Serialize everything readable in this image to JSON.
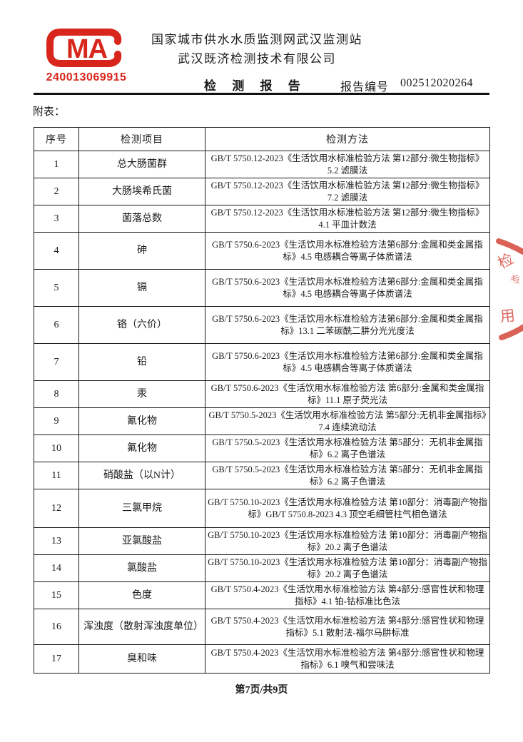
{
  "page": {
    "attachment_label": "附表：",
    "footer": "第7页/共9页"
  },
  "header": {
    "cma": {
      "mark": "MA",
      "number": "240013069915"
    },
    "org_line1": "国家城市供水水质监测网武汉监测站",
    "org_line2": "武汉既济检测技术有限公司",
    "report_title": "检 测 报 告",
    "report_no_label": "报告编号",
    "report_no": "002512020264"
  },
  "colors": {
    "brand_red": "#d9261c",
    "stamp_red": "#d4473a",
    "ink": "#1a1a1a"
  },
  "stamp": {
    "chars": [
      "检",
      "专",
      "用"
    ]
  },
  "table": {
    "columns": [
      "序号",
      "检测项目",
      "检测方法"
    ],
    "rows": [
      {
        "no": "1",
        "item": "总大肠菌群",
        "method": "GB/T 5750.12-2023《生活饮用水标准检验方法 第12部分:微生物指标》5.2 滤膜法"
      },
      {
        "no": "2",
        "item": "大肠埃希氏菌",
        "method": "GB/T 5750.12-2023《生活饮用水标准检验方法 第12部分:微生物指标》7.2 滤膜法"
      },
      {
        "no": "3",
        "item": "菌落总数",
        "method": "GB/T 5750.12-2023《生活饮用水标准检验方法 第12部分:微生物指标》4.1 平皿计数法"
      },
      {
        "no": "4",
        "item": "砷",
        "method": "GB/T 5750.6-2023《生活饮用水标准检验方法第6部分:金属和类金属指标》4.5 电感耦合等离子体质谱法"
      },
      {
        "no": "5",
        "item": "镉",
        "method": "GB/T 5750.6-2023《生活饮用水标准检验方法第6部分:金属和类金属指标》4.5 电感耦合等离子体质谱法"
      },
      {
        "no": "6",
        "item": "铬（六价）",
        "method": "GB/T 5750.6-2023《生活饮用水标准检验方法第6部分:金属和类金属指标》13.1 二苯碳酰二肼分光光度法"
      },
      {
        "no": "7",
        "item": "铅",
        "method": "GB/T 5750.6-2023《生活饮用水标准检验方法第6部分:金属和类金属指标》4.5 电感耦合等离子体质谱法"
      },
      {
        "no": "8",
        "item": "汞",
        "method": "GB/T 5750.6-2023《生活饮用水标准检验方法 第6部分:金属和类金属指标》11.1 原子荧光法"
      },
      {
        "no": "9",
        "item": "氰化物",
        "method": "GB/T 5750.5-2023《生活饮用水标准检验方法 第5部分:无机非金属指标》7.4 连续流动法"
      },
      {
        "no": "10",
        "item": "氟化物",
        "method": "GB/T 5750.5-2023《生活饮用水标准检验方法 第5部分：无机非金属指标》6.2 离子色谱法"
      },
      {
        "no": "11",
        "item": "硝酸盐（以N计）",
        "method": "GB/T 5750.5-2023《生活饮用水标准检验方法 第5部分：无机非金属指标》6.2 离子色谱法"
      },
      {
        "no": "12",
        "item": "三氯甲烷",
        "method": "GB/T 5750.10-2023《生活饮用水标准检验方法 第10部分：消毒副产物指标》GB/T 5750.8-2023 4.3 顶空毛细管柱气相色谱法"
      },
      {
        "no": "13",
        "item": "亚氯酸盐",
        "method": "GB/T 5750.10-2023《生活饮用水标准检验方法 第10部分：消毒副产物指标》20.2 离子色谱法"
      },
      {
        "no": "14",
        "item": "氯酸盐",
        "method": "GB/T 5750.10-2023《生活饮用水标准检验方法 第10部分：消毒副产物指标》20.2 离子色谱法"
      },
      {
        "no": "15",
        "item": "色度",
        "method": "GB/T 5750.4-2023《生活饮用水标准检验方法 第4部分:感官性状和物理指标》4.1 铂-钴标准比色法"
      },
      {
        "no": "16",
        "item": "浑浊度（散射浑浊度单位）",
        "method": "GB/T 5750.4-2023《生活饮用水标准检验方法 第4部分:感官性状和物理指标》5.1 散射法-福尔马肼标准"
      },
      {
        "no": "17",
        "item": "臭和味",
        "method": "GB/T 5750.4-2023《生活饮用水标准检验方法 第4部分:感官性状和物理指标》6.1 嗅气和尝味法"
      }
    ]
  }
}
